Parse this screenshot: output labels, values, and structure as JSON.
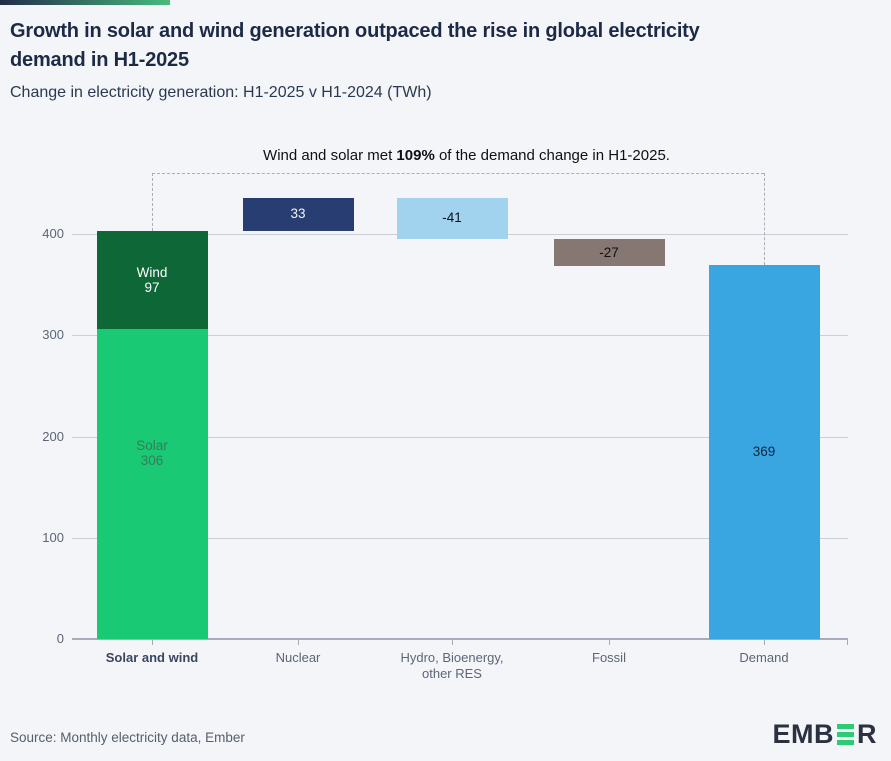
{
  "colors": {
    "background": "#f3f5f9",
    "accent_gradient_start": "#232c49",
    "accent_gradient_end": "#47bb7f",
    "logo_green": "#2dcb73"
  },
  "header": {
    "title_line1": "Growth in solar and wind generation outpaced the rise in global electricity",
    "title_line2": "demand in H1-2025",
    "subtitle": "Change in electricity generation: H1-2025 v H1-2024 (TWh)"
  },
  "annotation": {
    "prefix": "Wind and solar met ",
    "highlight": "109%",
    "suffix": " of the demand change in H1-2025."
  },
  "chart_data": {
    "type": "bar",
    "subtype": "waterfall",
    "title": "Change in electricity generation: H1-2025 v H1-2024 (TWh)",
    "unit": "TWh",
    "ylim": [
      0,
      440
    ],
    "yticks": [
      0,
      100,
      200,
      300,
      400
    ],
    "grid": true,
    "legend": "none",
    "categories": [
      {
        "text": "Solar and wind",
        "bold": true
      },
      {
        "text": "Nuclear",
        "bold": false
      },
      {
        "text": "Hydro, Bioenergy,\nother RES",
        "bold": false
      },
      {
        "text": "Fossil",
        "bold": false
      },
      {
        "text": "Demand",
        "bold": false
      }
    ],
    "bars": [
      {
        "category": "Solar and wind",
        "base": 0,
        "segments": [
          {
            "name": "Solar",
            "value": 306,
            "color": "#19c973",
            "label_color": "#3a7a5e"
          },
          {
            "name": "Wind",
            "value": 97,
            "color": "#0d6737",
            "label_color": "#ffffff"
          }
        ]
      },
      {
        "category": "Nuclear",
        "base": 403,
        "value": 33,
        "label": "33",
        "color": "#283e72",
        "label_color": "#f2f4f8"
      },
      {
        "category": "Hydro, Bioenergy, other RES",
        "base": 436,
        "value": -41,
        "label": "-41",
        "color": "#a1d2ee",
        "label_color": "#0d1117"
      },
      {
        "category": "Fossil",
        "base": 395,
        "value": -27,
        "label": "-27",
        "color": "#867772",
        "label_color": "#0d1117"
      },
      {
        "category": "Demand",
        "base": 0,
        "value": 369,
        "label": "369",
        "color": "#39a5e1",
        "label_color": "#15243e"
      }
    ]
  },
  "footer": {
    "source": "Source: Monthly electricity data, Ember",
    "logo_prefix": "EMB",
    "logo_suffix": "R"
  }
}
